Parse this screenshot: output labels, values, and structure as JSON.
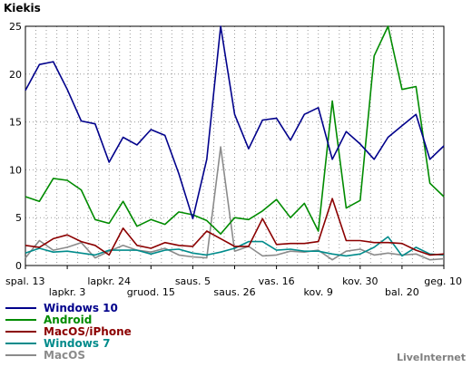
{
  "title": "Kiekis",
  "brand": "LiveInternet",
  "chart_data": {
    "type": "line",
    "title": "Kiekis",
    "ylim": [
      0,
      25
    ],
    "yticks": [
      0,
      5,
      10,
      15,
      20,
      25
    ],
    "grid": true,
    "legend_position": "bottom-left",
    "x_labels_row1": [
      "spal. 13",
      "lapkr. 24",
      "saus. 5",
      "vas. 16",
      "kov. 30",
      "geg. 10"
    ],
    "x_labels_row2": [
      "lapkr. 3",
      "gruod. 15",
      "saus. 26",
      "kov. 9",
      "bal. 20"
    ],
    "series": [
      {
        "name": "Windows 10",
        "color": "#00008b",
        "values": [
          18.3,
          21.0,
          21.3,
          18.4,
          15.1,
          14.8,
          10.8,
          13.4,
          12.6,
          14.2,
          13.6,
          9.6,
          4.9,
          11.1,
          25.0,
          15.8,
          12.2,
          15.2,
          15.4,
          13.1,
          15.8,
          16.5,
          11.1,
          14.0,
          12.7,
          11.1,
          13.4,
          14.6,
          15.8,
          11.1,
          12.5
        ]
      },
      {
        "name": "Android",
        "color": "#008b00",
        "values": [
          7.2,
          6.7,
          9.1,
          8.9,
          7.9,
          4.8,
          4.4,
          6.7,
          4.1,
          4.8,
          4.3,
          5.6,
          5.3,
          4.7,
          3.3,
          5.0,
          4.8,
          5.7,
          6.9,
          5.0,
          6.5,
          3.6,
          17.2,
          6.0,
          6.8,
          21.9,
          25.0,
          18.4,
          18.7,
          8.6,
          7.2
        ]
      },
      {
        "name": "MacOS/iPhone",
        "color": "#8b0000",
        "values": [
          2.1,
          1.9,
          2.8,
          3.2,
          2.5,
          2.1,
          1.1,
          3.9,
          2.1,
          1.8,
          2.4,
          2.1,
          2.0,
          3.6,
          2.8,
          2.0,
          2.0,
          4.9,
          2.2,
          2.3,
          2.3,
          2.5,
          7.0,
          2.6,
          2.6,
          2.4,
          2.4,
          2.3,
          1.6,
          1.1,
          1.2
        ]
      },
      {
        "name": "Windows 7",
        "color": "#008b8b",
        "values": [
          1.3,
          1.8,
          1.4,
          1.5,
          1.3,
          1.1,
          1.6,
          1.6,
          1.6,
          1.2,
          1.6,
          1.7,
          1.3,
          1.1,
          1.4,
          1.8,
          2.5,
          2.5,
          1.6,
          1.7,
          1.5,
          1.5,
          1.2,
          1.0,
          1.2,
          1.9,
          3.0,
          1.0,
          1.9,
          1.2,
          1.1
        ]
      },
      {
        "name": "MacOS",
        "color": "#8b8b8b",
        "values": [
          0.8,
          2.6,
          1.6,
          1.9,
          2.4,
          0.8,
          1.5,
          2.1,
          1.6,
          1.4,
          1.8,
          1.1,
          0.9,
          0.8,
          12.4,
          1.5,
          2.0,
          1.0,
          1.1,
          1.5,
          1.4,
          1.6,
          0.6,
          1.5,
          1.7,
          1.1,
          1.3,
          1.1,
          1.2,
          0.6,
          0.7
        ]
      }
    ]
  }
}
